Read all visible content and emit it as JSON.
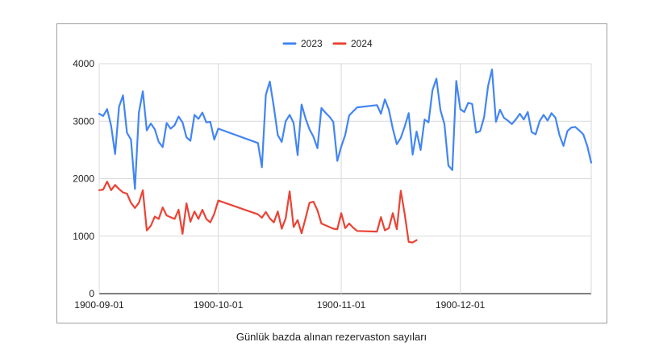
{
  "caption": "Günlük bazda alınan rezervaston sayıları",
  "chart_data": {
    "type": "line",
    "title": "",
    "xlabel": "",
    "ylabel": "",
    "ylim": [
      0,
      4000
    ],
    "yticks": [
      0,
      1000,
      2000,
      3000,
      4000
    ],
    "x_range_days": [
      0,
      120
    ],
    "xticks": [
      {
        "label": "1900-09-01",
        "day": 0
      },
      {
        "label": "1900-10-01",
        "day": 30
      },
      {
        "label": "1900-11-01",
        "day": 61
      },
      {
        "label": "1900-12-01",
        "day": 91
      }
    ],
    "grid": true,
    "legend_position": "top",
    "series": [
      {
        "name": "2023",
        "color": "#4285f4",
        "points": [
          [
            0,
            3130
          ],
          [
            1,
            3090
          ],
          [
            2,
            3210
          ],
          [
            3,
            2920
          ],
          [
            4,
            2430
          ],
          [
            5,
            3250
          ],
          [
            6,
            3450
          ],
          [
            7,
            2800
          ],
          [
            8,
            2680
          ],
          [
            9,
            1820
          ],
          [
            10,
            3150
          ],
          [
            11,
            3520
          ],
          [
            12,
            2840
          ],
          [
            13,
            2960
          ],
          [
            14,
            2860
          ],
          [
            15,
            2640
          ],
          [
            16,
            2550
          ],
          [
            17,
            2970
          ],
          [
            18,
            2870
          ],
          [
            19,
            2930
          ],
          [
            20,
            3080
          ],
          [
            21,
            2980
          ],
          [
            22,
            2720
          ],
          [
            23,
            2660
          ],
          [
            24,
            3110
          ],
          [
            25,
            3040
          ],
          [
            26,
            3150
          ],
          [
            27,
            2980
          ],
          [
            28,
            2990
          ],
          [
            29,
            2680
          ],
          [
            30,
            2870
          ],
          [
            40,
            2620
          ],
          [
            41,
            2200
          ],
          [
            42,
            3460
          ],
          [
            43,
            3690
          ],
          [
            44,
            3250
          ],
          [
            45,
            2760
          ],
          [
            46,
            2640
          ],
          [
            47,
            3000
          ],
          [
            48,
            3110
          ],
          [
            49,
            2970
          ],
          [
            50,
            2410
          ],
          [
            51,
            3290
          ],
          [
            52,
            3050
          ],
          [
            53,
            2860
          ],
          [
            54,
            2730
          ],
          [
            55,
            2530
          ],
          [
            56,
            3230
          ],
          [
            57,
            3150
          ],
          [
            58,
            3080
          ],
          [
            59,
            2990
          ],
          [
            60,
            2310
          ],
          [
            61,
            2560
          ],
          [
            62,
            2760
          ],
          [
            63,
            3100
          ],
          [
            64,
            3170
          ],
          [
            65,
            3240
          ],
          [
            70,
            3280
          ],
          [
            71,
            3130
          ],
          [
            72,
            3380
          ],
          [
            73,
            3200
          ],
          [
            74,
            2870
          ],
          [
            75,
            2600
          ],
          [
            76,
            2710
          ],
          [
            77,
            2910
          ],
          [
            78,
            3140
          ],
          [
            79,
            2420
          ],
          [
            80,
            2820
          ],
          [
            81,
            2500
          ],
          [
            82,
            3030
          ],
          [
            83,
            2980
          ],
          [
            84,
            3540
          ],
          [
            85,
            3740
          ],
          [
            86,
            3190
          ],
          [
            87,
            2950
          ],
          [
            88,
            2230
          ],
          [
            89,
            2150
          ],
          [
            90,
            3700
          ],
          [
            91,
            3210
          ],
          [
            92,
            3160
          ],
          [
            93,
            3320
          ],
          [
            94,
            3300
          ],
          [
            95,
            2800
          ],
          [
            96,
            2830
          ],
          [
            97,
            3070
          ],
          [
            98,
            3610
          ],
          [
            99,
            3900
          ],
          [
            100,
            2990
          ],
          [
            101,
            3200
          ],
          [
            102,
            3060
          ],
          [
            103,
            3010
          ],
          [
            104,
            2950
          ],
          [
            105,
            3030
          ],
          [
            106,
            3130
          ],
          [
            107,
            3030
          ],
          [
            108,
            3160
          ],
          [
            109,
            2810
          ],
          [
            110,
            2770
          ],
          [
            111,
            3000
          ],
          [
            112,
            3110
          ],
          [
            113,
            3010
          ],
          [
            114,
            3140
          ],
          [
            115,
            3060
          ],
          [
            116,
            2760
          ],
          [
            117,
            2570
          ],
          [
            118,
            2830
          ],
          [
            119,
            2890
          ],
          [
            120,
            2900
          ],
          [
            121,
            2840
          ],
          [
            122,
            2770
          ],
          [
            123,
            2570
          ],
          [
            124,
            2280
          ]
        ]
      },
      {
        "name": "2024",
        "color": "#ea4335",
        "points": [
          [
            0,
            1800
          ],
          [
            1,
            1810
          ],
          [
            2,
            1950
          ],
          [
            3,
            1800
          ],
          [
            4,
            1890
          ],
          [
            5,
            1820
          ],
          [
            6,
            1760
          ],
          [
            7,
            1740
          ],
          [
            8,
            1580
          ],
          [
            9,
            1490
          ],
          [
            10,
            1580
          ],
          [
            11,
            1800
          ],
          [
            12,
            1100
          ],
          [
            13,
            1180
          ],
          [
            14,
            1340
          ],
          [
            15,
            1300
          ],
          [
            16,
            1500
          ],
          [
            17,
            1360
          ],
          [
            18,
            1330
          ],
          [
            19,
            1300
          ],
          [
            20,
            1460
          ],
          [
            21,
            1040
          ],
          [
            22,
            1570
          ],
          [
            23,
            1250
          ],
          [
            24,
            1430
          ],
          [
            25,
            1300
          ],
          [
            26,
            1460
          ],
          [
            27,
            1300
          ],
          [
            28,
            1240
          ],
          [
            29,
            1390
          ],
          [
            30,
            1620
          ],
          [
            40,
            1380
          ],
          [
            41,
            1320
          ],
          [
            42,
            1420
          ],
          [
            43,
            1310
          ],
          [
            44,
            1240
          ],
          [
            45,
            1430
          ],
          [
            46,
            1130
          ],
          [
            47,
            1310
          ],
          [
            48,
            1780
          ],
          [
            49,
            1160
          ],
          [
            50,
            1280
          ],
          [
            51,
            1050
          ],
          [
            52,
            1310
          ],
          [
            53,
            1580
          ],
          [
            54,
            1600
          ],
          [
            55,
            1450
          ],
          [
            56,
            1220
          ],
          [
            57,
            1190
          ],
          [
            58,
            1160
          ],
          [
            59,
            1130
          ],
          [
            60,
            1120
          ],
          [
            61,
            1400
          ],
          [
            62,
            1140
          ],
          [
            63,
            1220
          ],
          [
            64,
            1150
          ],
          [
            65,
            1090
          ],
          [
            70,
            1080
          ],
          [
            71,
            1330
          ],
          [
            72,
            1100
          ],
          [
            73,
            1140
          ],
          [
            74,
            1400
          ],
          [
            75,
            1120
          ],
          [
            76,
            1790
          ],
          [
            77,
            1380
          ],
          [
            78,
            900
          ],
          [
            79,
            890
          ],
          [
            80,
            930
          ]
        ]
      }
    ]
  }
}
